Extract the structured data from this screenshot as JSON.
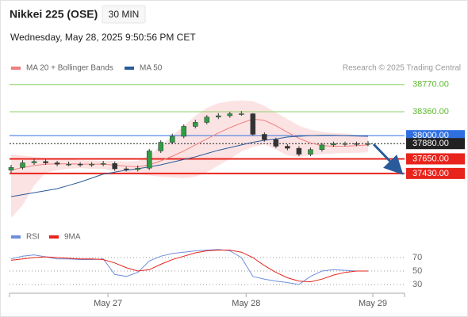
{
  "chart_data": [
    {
      "type": "candlestick",
      "title": "Nikkei 225 (OSE)",
      "timeframe": "30 MIN",
      "subtitle": "Wednesday, May 28, 2025 9:50:56 PM CET",
      "credit": "Research © 2025 Trading Central",
      "categories": [
        null,
        null,
        null,
        null,
        null,
        null,
        null,
        null,
        "May 27",
        null,
        null,
        null,
        null,
        null,
        null,
        null,
        null,
        null,
        null,
        null,
        "May 28",
        null,
        null,
        null,
        null,
        null,
        null,
        null,
        null,
        null,
        null,
        "May 29"
      ],
      "open": [
        37480,
        37520,
        37590,
        37610,
        37590,
        37570,
        37570,
        37565,
        37570,
        37580,
        37500,
        37490,
        37510,
        37770,
        37900,
        37990,
        38140,
        38200,
        38280,
        38300,
        38330,
        38330,
        38020,
        37940,
        37840,
        37810,
        37720,
        37790,
        37860,
        37880,
        37880,
        37875
      ],
      "high": [
        37560,
        37630,
        37650,
        37640,
        37620,
        37610,
        37600,
        37600,
        37620,
        37610,
        37530,
        37550,
        37800,
        37930,
        38030,
        38170,
        38240,
        38310,
        38340,
        38360,
        38370,
        38340,
        38050,
        37970,
        37870,
        37840,
        37820,
        37890,
        37910,
        37910,
        37910,
        37920
      ],
      "low": [
        37440,
        37490,
        37560,
        37560,
        37540,
        37540,
        37530,
        37530,
        37540,
        37470,
        37460,
        37460,
        37480,
        37740,
        37870,
        37960,
        38110,
        38170,
        38250,
        38270,
        38300,
        38000,
        37910,
        37810,
        37780,
        37690,
        37690,
        37760,
        37830,
        37840,
        37840,
        37840
      ],
      "close": [
        37520,
        37590,
        37610,
        37590,
        37570,
        37570,
        37565,
        37570,
        37580,
        37500,
        37490,
        37510,
        37770,
        37900,
        37990,
        38140,
        38200,
        38280,
        38300,
        38330,
        38330,
        38020,
        37940,
        37840,
        37810,
        37720,
        37790,
        37860,
        37880,
        37880,
        37875,
        37880
      ],
      "up_color": "#2f9e44",
      "down_color": "#333333",
      "series": [
        {
          "name": "MA 20 + Bollinger Bands",
          "color": "#f08080",
          "values": [
            37480,
            37520,
            37550,
            37570,
            37575,
            37575,
            37570,
            37570,
            37570,
            37555,
            37540,
            37530,
            37560,
            37620,
            37690,
            37770,
            37860,
            37950,
            38040,
            38120,
            38190,
            38250,
            38230,
            38150,
            38050,
            37960,
            37890,
            37850,
            37840,
            37840,
            37850,
            37860
          ],
          "upper": [
            37720,
            37700,
            37680,
            37660,
            37650,
            37640,
            37630,
            37625,
            37620,
            37620,
            37610,
            37620,
            37700,
            37850,
            38000,
            38150,
            38300,
            38420,
            38490,
            38520,
            38530,
            38520,
            38450,
            38350,
            38250,
            38150,
            38090,
            38060,
            38040,
            38030,
            38010,
            38000
          ],
          "lower": [
            36760,
            36950,
            37250,
            37440,
            37480,
            37500,
            37510,
            37500,
            37500,
            37460,
            37440,
            37420,
            37400,
            37380,
            37370,
            37360,
            37380,
            37450,
            37550,
            37650,
            37760,
            37830,
            37870,
            37790,
            37700,
            37680,
            37700,
            37720,
            37730,
            37740,
            37740,
            37750
          ]
        },
        {
          "name": "MA 50",
          "color": "#2a5a9a",
          "values": [
            37080,
            37110,
            37140,
            37170,
            37200,
            37250,
            37300,
            37360,
            37420,
            37450,
            37480,
            37500,
            37530,
            37560,
            37600,
            37640,
            37680,
            37730,
            37780,
            37820,
            37860,
            37900,
            37930,
            37950,
            37980,
            37990,
            38000,
            38005,
            38005,
            38000,
            37995,
            37990
          ]
        }
      ],
      "ylim": [
        36640,
        38910
      ],
      "levels": [
        {
          "value": 38770,
          "label": "38770.00",
          "color": "#8fd16b",
          "boxed": false,
          "line": "solid"
        },
        {
          "value": 38360,
          "label": "38360.00",
          "color": "#8fd16b",
          "boxed": false,
          "line": "solid"
        },
        {
          "value": 38000,
          "label": "38000.00",
          "color": "#2f6fe0",
          "boxed": true,
          "line": "solid"
        },
        {
          "value": 37880,
          "label": "37880.00",
          "color": "#222222",
          "boxed": true,
          "line": "dotted"
        },
        {
          "value": 37650,
          "label": "37650.00",
          "color": "#e8241c",
          "boxed": true,
          "line": "solid"
        },
        {
          "value": 37430,
          "label": "37430.00",
          "color": "#e8241c",
          "boxed": true,
          "line": "solid"
        }
      ]
    },
    {
      "type": "line",
      "series": [
        {
          "name": "RSI",
          "color": "#6f8fdc",
          "values": [
            68,
            72,
            74,
            71,
            68,
            68,
            67,
            67,
            68,
            45,
            42,
            48,
            65,
            72,
            76,
            78,
            80,
            81,
            82,
            80,
            70,
            42,
            38,
            35,
            33,
            30,
            42,
            50,
            52,
            51,
            50,
            50
          ]
        },
        {
          "name": "9MA",
          "color": "#e8241c",
          "values": [
            66,
            68,
            70,
            71,
            70,
            69,
            68,
            68,
            67,
            62,
            55,
            50,
            52,
            60,
            67,
            72,
            77,
            80,
            81,
            81,
            78,
            70,
            58,
            48,
            40,
            35,
            34,
            38,
            44,
            48,
            50,
            50
          ]
        }
      ],
      "ylim": [
        22,
        94
      ],
      "yticks": [
        30,
        50,
        70
      ],
      "grid": true
    }
  ]
}
